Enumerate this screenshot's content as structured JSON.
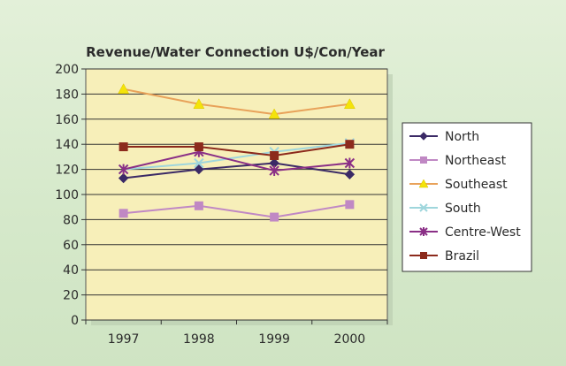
{
  "chart_data": {
    "type": "line",
    "title": "Revenue/Water Connection U$/Con/Year",
    "xlabel": "",
    "ylabel": "",
    "categories": [
      "1997",
      "1998",
      "1999",
      "2000"
    ],
    "ylim": [
      0,
      200
    ],
    "yticks": [
      0,
      20,
      40,
      60,
      80,
      100,
      120,
      140,
      160,
      180,
      200
    ],
    "grid": true,
    "legend_position": "right",
    "plot_background": "#f7efb9",
    "series": [
      {
        "name": "North",
        "values": [
          113,
          120,
          125,
          116
        ],
        "color": "#3b2a66",
        "marker": "diamond"
      },
      {
        "name": "Northeast",
        "values": [
          85,
          91,
          82,
          92
        ],
        "color": "#c088c4",
        "marker": "square"
      },
      {
        "name": "Southeast",
        "values": [
          184,
          172,
          164,
          172
        ],
        "color": "#f4e30a",
        "line_color": "#e8a25a",
        "marker": "triangle"
      },
      {
        "name": "South",
        "values": [
          120,
          125,
          134,
          141
        ],
        "color": "#9fd6dc",
        "marker": "x"
      },
      {
        "name": "Centre-West",
        "values": [
          120,
          134,
          119,
          125
        ],
        "color": "#8a2f86",
        "marker": "star"
      },
      {
        "name": "Brazil",
        "values": [
          138,
          138,
          131,
          140
        ],
        "color": "#8c2a1c",
        "marker": "square"
      }
    ]
  }
}
